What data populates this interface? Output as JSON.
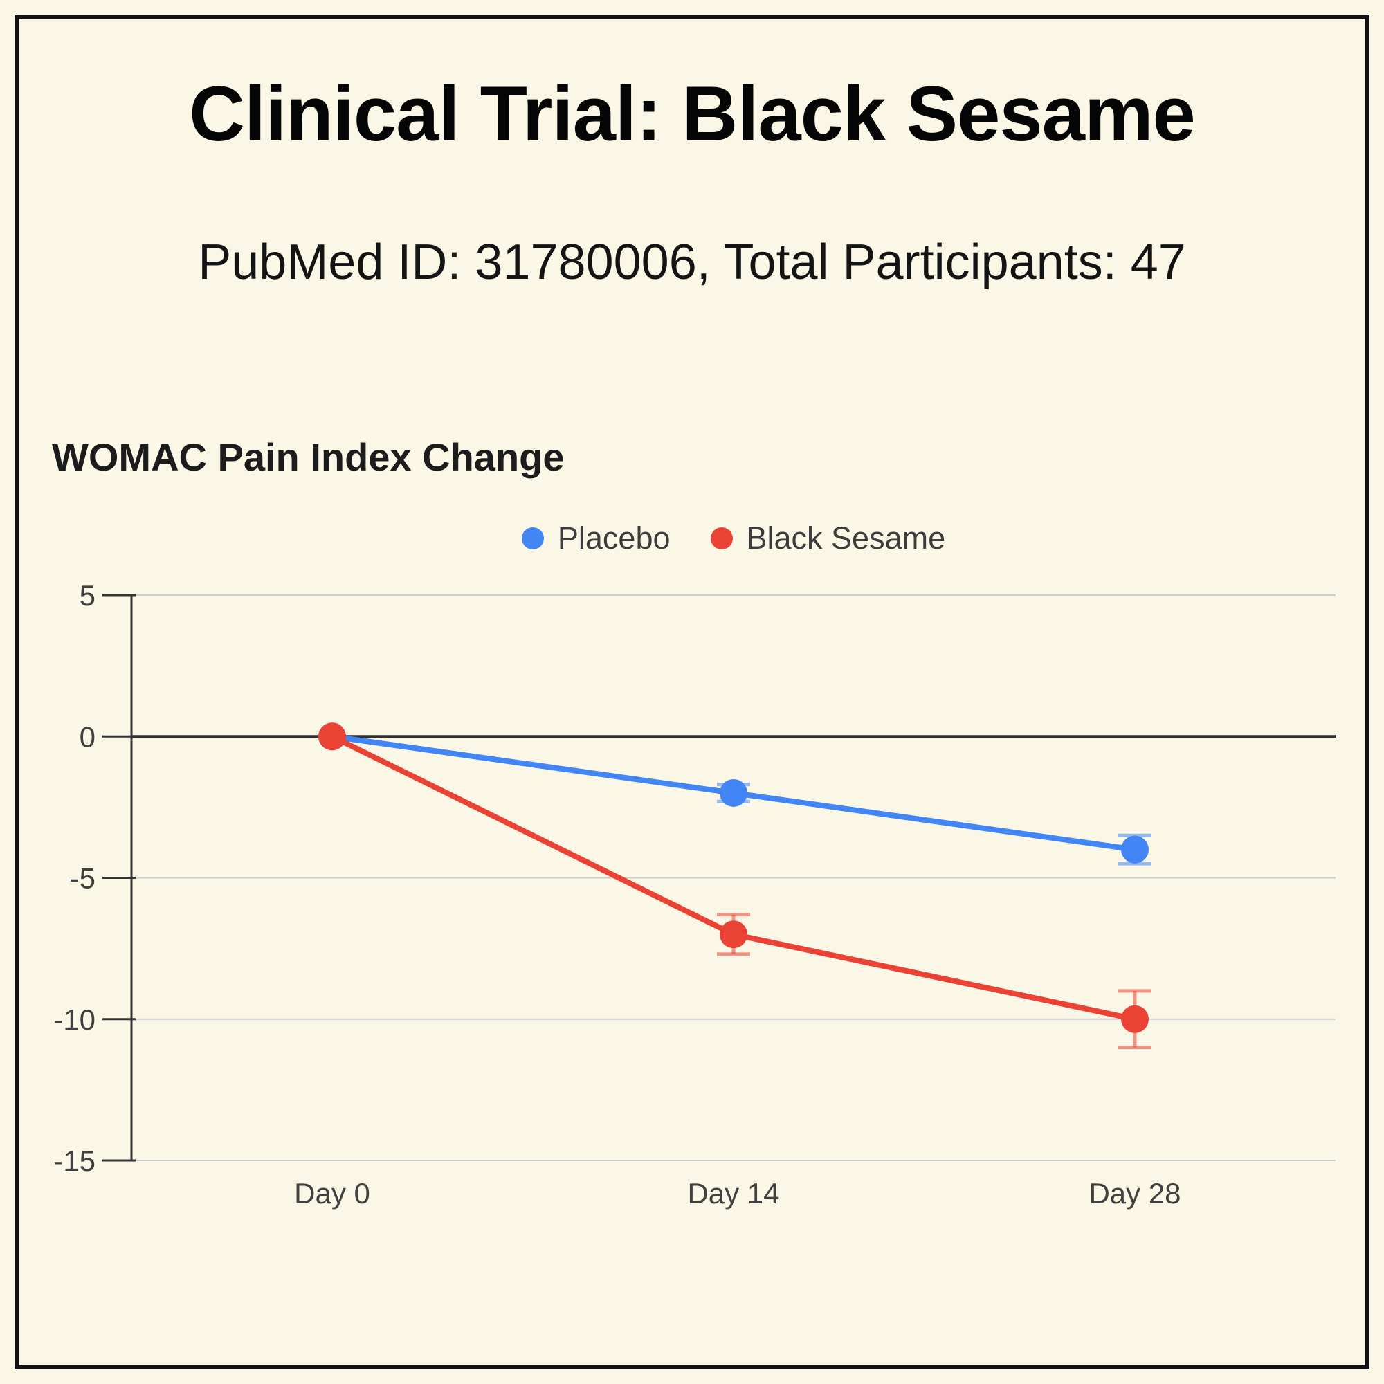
{
  "page": {
    "title": "Clinical Trial: Black Sesame",
    "subtitle": "PubMed ID: 31780006, Total Participants: 47",
    "background_color": "#FBF7E6",
    "border_color": "#111111"
  },
  "chart_data": {
    "type": "line",
    "title": "WOMAC Pain Index Change",
    "categories": [
      "Day 0",
      "Day 14",
      "Day 28"
    ],
    "series": [
      {
        "name": "Placebo",
        "color": "#4285F4",
        "values": [
          0,
          -2,
          -4
        ],
        "errors": [
          0,
          0.3,
          0.5
        ]
      },
      {
        "name": "Black Sesame",
        "color": "#EA4335",
        "values": [
          0,
          -7,
          -10
        ],
        "errors": [
          0,
          0.7,
          1.0
        ]
      }
    ],
    "xlabel": "",
    "ylabel": "",
    "ylim": [
      -15,
      5
    ],
    "yticks": [
      5,
      0,
      -5,
      -10,
      -15
    ],
    "grid": true,
    "zero_line": true,
    "legend_position": "top-center",
    "gridline_color": "#cccccc",
    "zero_line_color": "#2f2f2f",
    "axis_color": "#333333",
    "tick_label_color": "#404040"
  }
}
